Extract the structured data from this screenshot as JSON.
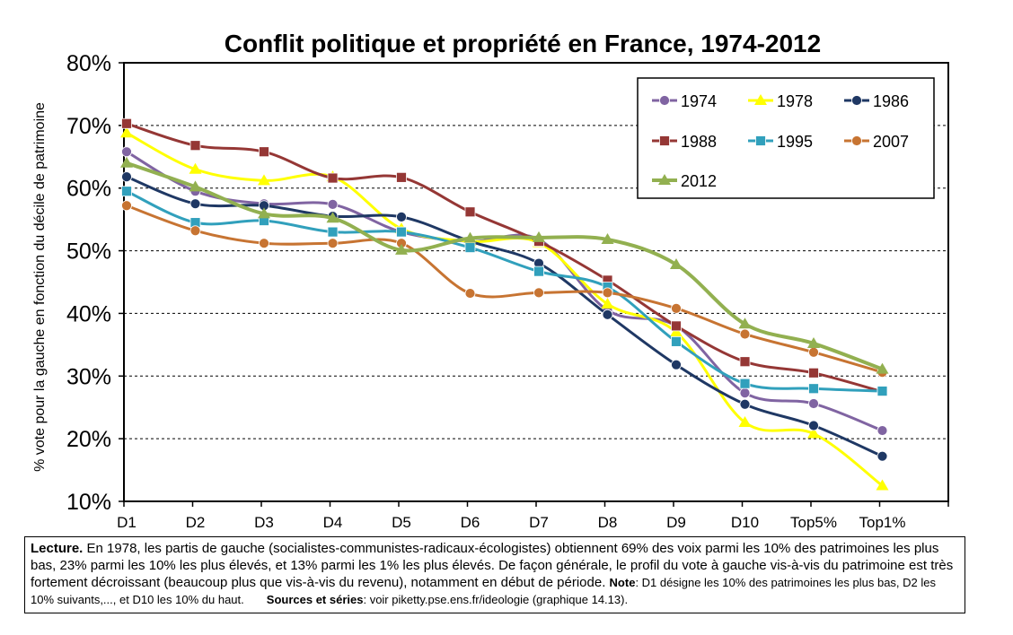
{
  "chart_data": {
    "type": "line",
    "title": "Conflit politique et propriété en France, 1974-2012",
    "ylabel": "% vote pour la gauche en fonction du décile de patrimoine",
    "xlabel": "",
    "ylim": [
      10,
      80
    ],
    "yticks": [
      "10%",
      "20%",
      "30%",
      "40%",
      "50%",
      "60%",
      "70%",
      "80%"
    ],
    "ytick_values": [
      10,
      20,
      30,
      40,
      50,
      60,
      70,
      80
    ],
    "grid": "horizontal dashed",
    "legend_position": "top-right",
    "categories": [
      "D1",
      "D2",
      "D3",
      "D4",
      "D5",
      "D6",
      "D7",
      "D8",
      "D9",
      "D10",
      "Top5%",
      "Top1%"
    ],
    "series": [
      {
        "name": "1974",
        "color": "#8064A2",
        "marker": "circle",
        "values": [
          65.8,
          59.5,
          57.5,
          57.4,
          53.0,
          51.5,
          51.8,
          40.5,
          38.0,
          27.3,
          25.6,
          21.3
        ]
      },
      {
        "name": "1978",
        "color": "#FFFF00",
        "marker": "triangle",
        "values": [
          68.8,
          63.0,
          61.2,
          61.8,
          53.5,
          51.5,
          51.3,
          41.5,
          37.0,
          22.6,
          20.8,
          12.5
        ]
      },
      {
        "name": "1986",
        "color": "#1F3864",
        "marker": "circle",
        "values": [
          61.8,
          57.5,
          57.2,
          55.5,
          55.4,
          51.5,
          48.0,
          39.8,
          31.8,
          25.5,
          22.1,
          17.2
        ]
      },
      {
        "name": "1988",
        "color": "#953735",
        "marker": "square",
        "values": [
          70.3,
          66.8,
          65.8,
          61.6,
          61.7,
          56.2,
          51.5,
          45.3,
          38.0,
          32.3,
          30.5,
          27.5
        ]
      },
      {
        "name": "1995",
        "color": "#31A0BC",
        "marker": "square",
        "values": [
          59.5,
          54.5,
          54.8,
          53.0,
          53.0,
          50.5,
          46.7,
          44.2,
          35.5,
          28.8,
          28.0,
          27.6
        ]
      },
      {
        "name": "2007",
        "color": "#C77432",
        "marker": "circle",
        "values": [
          57.2,
          53.2,
          51.2,
          51.2,
          51.2,
          43.2,
          43.3,
          43.3,
          40.8,
          36.7,
          33.8,
          30.6
        ]
      },
      {
        "name": "2012",
        "color": "#92B050",
        "marker": "triangle",
        "values": [
          64.0,
          60.2,
          55.9,
          55.2,
          50.1,
          52.0,
          52.1,
          51.8,
          47.8,
          38.3,
          35.2,
          31.1
        ]
      }
    ]
  },
  "note": {
    "lecture_label": "Lecture.",
    "lecture_text": " En 1978, les partis de gauche (socialistes-communistes-radicaux-écologistes) obtiennent 69% des voix parmi les 10% des patrimoines les plus bas, 23% parmi les 10% les plus élevés, et 13% parmi les 1% les plus élevés. De façon générale, le profil du vote à gauche vis-à-vis du patrimoine est très fortement décroissant (beaucoup plus que vis-à-vis du revenu), notamment en début de période. ",
    "note_label": "Note",
    "note_text": ": D1 désigne les 10% des patrimoines les plus bas, D2 les 10% suivants,..., et D10 les 10% du haut.",
    "sources_label": "Sources et séries",
    "sources_text": ": voir piketty.pse.ens.fr/ideologie (graphique 14.13)."
  }
}
